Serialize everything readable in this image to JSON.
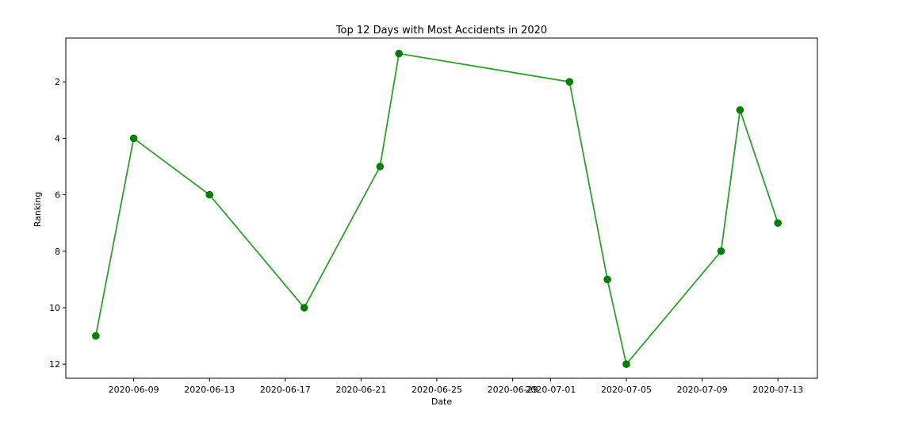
{
  "chart_data": {
    "type": "line",
    "title": "Top 12 Days with Most Accidents in 2020",
    "xlabel": "Date",
    "ylabel": "Ranking",
    "y_inverted": true,
    "ylim": [
      12.5,
      0.45
    ],
    "xlim": [
      "2020-06-05T10:00",
      "2020-07-15T02:00"
    ],
    "x_ticks": [
      "2020-06-09",
      "2020-06-13",
      "2020-06-17",
      "2020-06-21",
      "2020-06-25",
      "2020-06-29",
      "2020-07-01",
      "2020-07-05",
      "2020-07-09",
      "2020-07-13"
    ],
    "y_ticks": [
      2,
      4,
      6,
      8,
      10,
      12
    ],
    "grid": false,
    "line_color": "#2ca02c",
    "marker_color": "#008000",
    "series": [
      {
        "x": [
          "2020-06-07",
          "2020-06-09",
          "2020-06-13",
          "2020-06-18",
          "2020-06-22",
          "2020-06-23",
          "2020-07-02",
          "2020-07-04",
          "2020-07-05",
          "2020-07-10",
          "2020-07-11",
          "2020-07-13"
        ],
        "values": [
          11,
          4,
          6,
          10,
          5,
          1,
          2,
          9,
          12,
          8,
          3,
          7
        ]
      }
    ]
  }
}
